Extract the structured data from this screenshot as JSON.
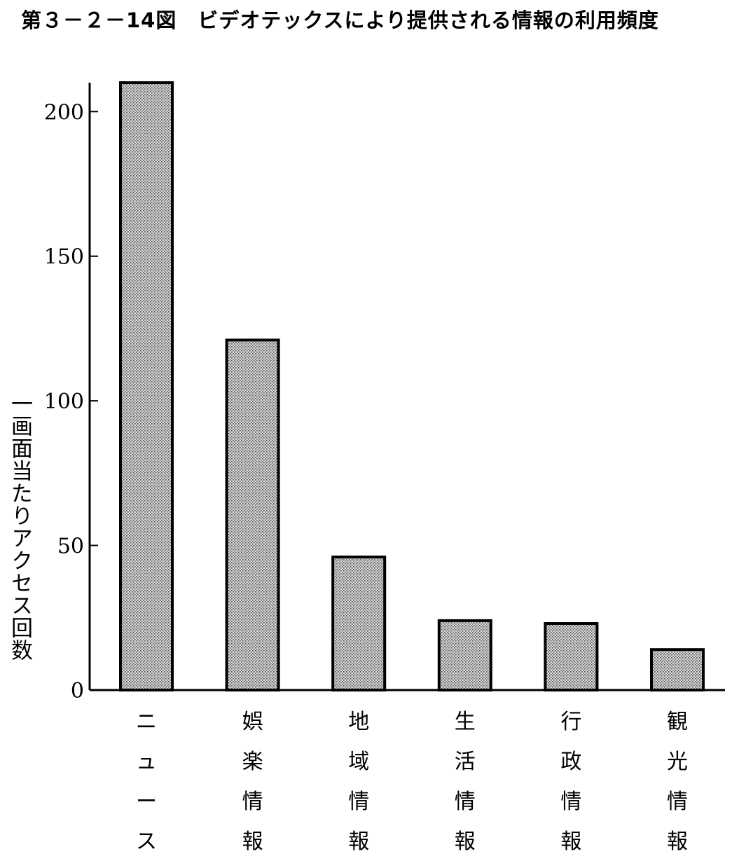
{
  "chart_data": {
    "type": "bar",
    "title": "第３－２－14図　ビデオテックスにより提供される情報の利用頻度",
    "ylabel": "一画面当たりアクセス回数",
    "xlabel": "",
    "categories": [
      "ニュース",
      "娯楽情報",
      "地域情報",
      "生活情報",
      "行政情報",
      "観光情報"
    ],
    "values": [
      210,
      121,
      46,
      24,
      23,
      14
    ],
    "ylim": [
      0,
      210
    ],
    "yticks": [
      0,
      50,
      100,
      150,
      200
    ],
    "grid": false,
    "legend": "none",
    "colors": {
      "bar_fill": "#c8c8c8",
      "bar_stroke": "#000000",
      "axis": "#000000"
    }
  }
}
